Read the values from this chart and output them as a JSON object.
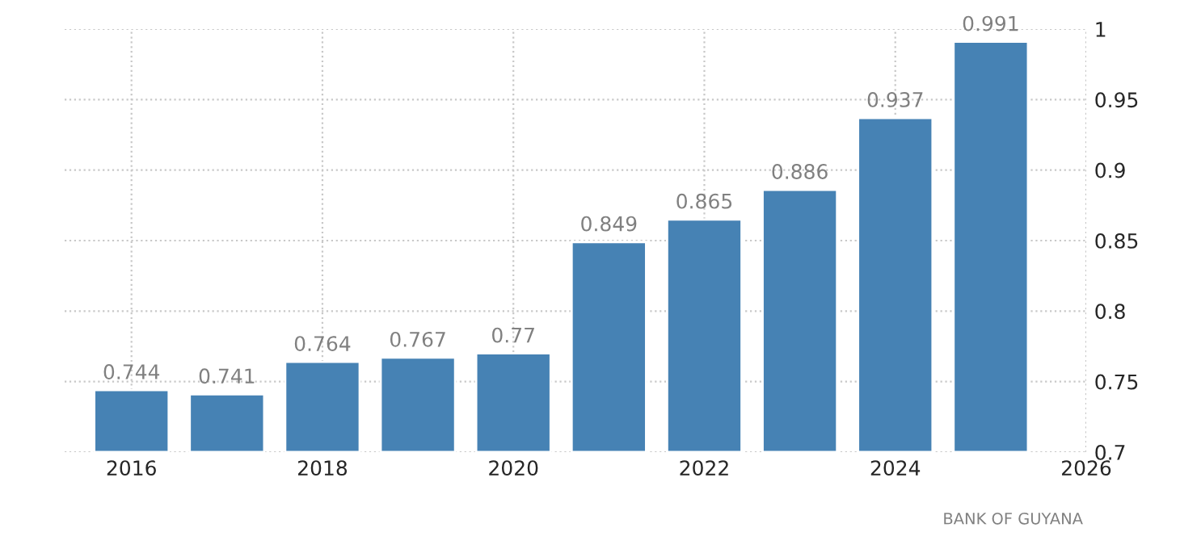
{
  "chart_data": {
    "type": "bar",
    "x": [
      2016,
      2017,
      2018,
      2019,
      2020,
      2021,
      2022,
      2023,
      2024,
      2025
    ],
    "values": [
      0.744,
      0.741,
      0.764,
      0.767,
      0.77,
      0.849,
      0.865,
      0.886,
      0.937,
      0.991
    ],
    "color": "#4682b4",
    "data_labels": true,
    "xlim": [
      2015.3,
      2026
    ],
    "xticks": [
      2016,
      2018,
      2020,
      2022,
      2024,
      2026
    ],
    "ylim": [
      0.7,
      1
    ],
    "yticks": [
      0.7,
      0.75,
      0.8,
      0.85,
      0.9,
      0.95,
      1
    ],
    "grid": true,
    "annotations": [
      "BANK OF GUYANA"
    ]
  }
}
